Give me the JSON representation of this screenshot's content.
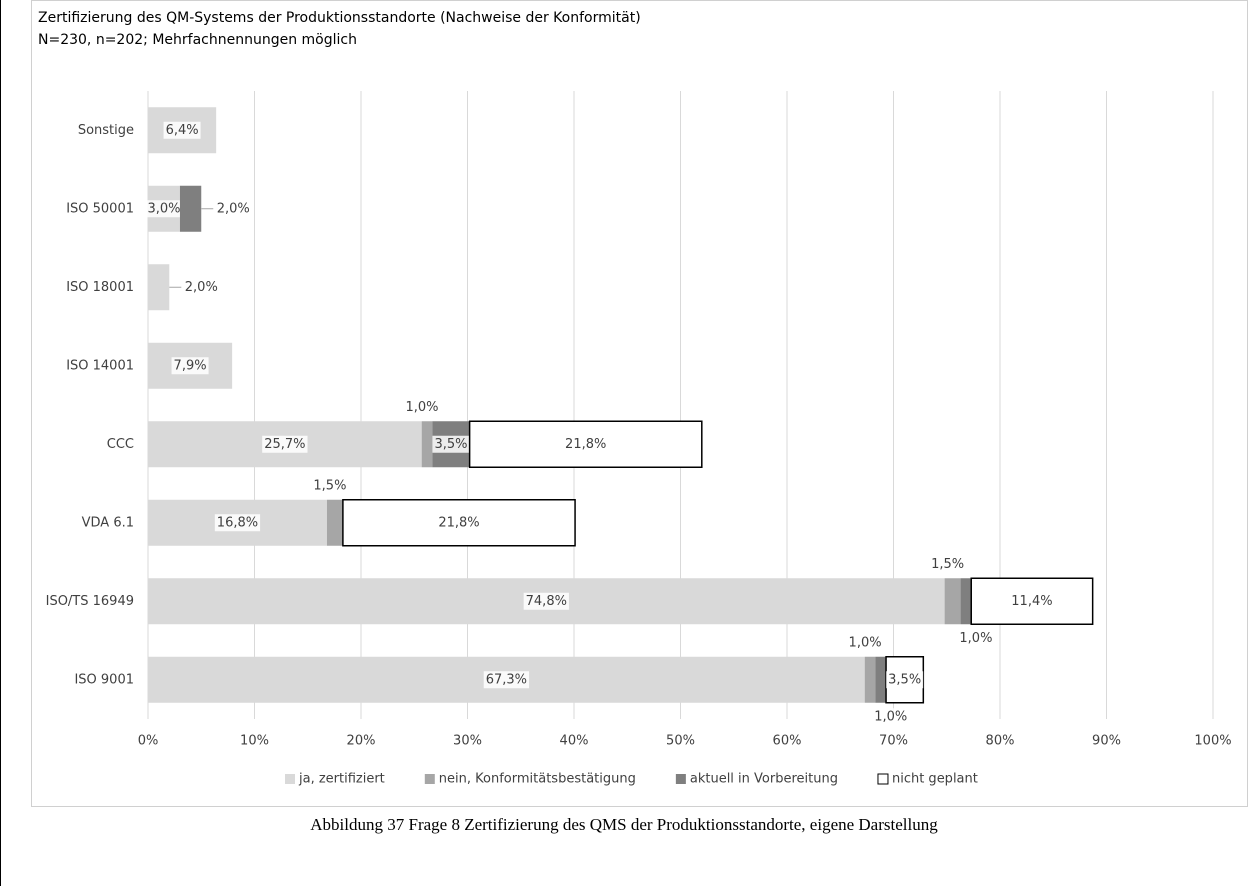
{
  "chart_data": {
    "type": "stacked-barh",
    "title": "Zertifizierung des QM-Systems der Produktionsstandorte (Nachweise der Konformität)",
    "subtitle": "N=230, n=202; Mehrfachnennungen möglich",
    "caption": "Abbildung 37 Frage 8 Zertifizierung des QMS der Produktionsstandorte, eigene Darstellung",
    "categories": [
      "Sonstige",
      "ISO 50001",
      "ISO 18001",
      "ISO 14001",
      "CCC",
      "VDA 6.1",
      "ISO/TS 16949",
      "ISO 9001"
    ],
    "series": [
      {
        "name": "ja, zertifiziert",
        "color": "#d9d9d9",
        "border": null,
        "values": [
          6.4,
          3.0,
          2.0,
          7.9,
          25.7,
          16.8,
          74.8,
          67.3
        ],
        "value_labels": [
          "6,4%",
          "3,0%",
          "2,0%",
          "7,9%",
          "25,7%",
          "16,8%",
          "74,8%",
          "67,3%"
        ]
      },
      {
        "name": "nein, Konformitätsbestätigung",
        "color": "#a6a6a6",
        "border": null,
        "values": [
          null,
          null,
          null,
          null,
          1.0,
          1.5,
          1.5,
          1.0
        ],
        "value_labels": [
          null,
          null,
          null,
          null,
          "1,0%",
          "1,5%",
          "1,5%",
          "1,0%"
        ]
      },
      {
        "name": "aktuell in Vorbereitung",
        "color": "#7f7f7f",
        "border": null,
        "values": [
          null,
          2.0,
          null,
          null,
          3.5,
          null,
          1.0,
          1.0
        ],
        "value_labels": [
          null,
          "2,0%",
          null,
          null,
          "3,5%",
          null,
          "1,0%",
          "1,0%"
        ]
      },
      {
        "name": "nicht geplant",
        "color": "#ffffff",
        "border": "#000000",
        "values": [
          null,
          null,
          null,
          null,
          21.8,
          21.8,
          11.4,
          3.5
        ],
        "value_labels": [
          null,
          null,
          null,
          null,
          "21,8%",
          "21,8%",
          "11,4%",
          "3,5%"
        ]
      }
    ],
    "xlim": [
      0,
      100
    ],
    "xticks": [
      {
        "value": 0,
        "label": "0%"
      },
      {
        "value": 10,
        "label": "10%"
      },
      {
        "value": 20,
        "label": "20%"
      },
      {
        "value": 30,
        "label": "30%"
      },
      {
        "value": 40,
        "label": "40%"
      },
      {
        "value": 50,
        "label": "50%"
      },
      {
        "value": 60,
        "label": "60%"
      },
      {
        "value": 70,
        "label": "70%"
      },
      {
        "value": 80,
        "label": "80%"
      },
      {
        "value": 90,
        "label": "90%"
      },
      {
        "value": 100,
        "label": "100%"
      }
    ],
    "grid": true,
    "legend": "bottom"
  }
}
